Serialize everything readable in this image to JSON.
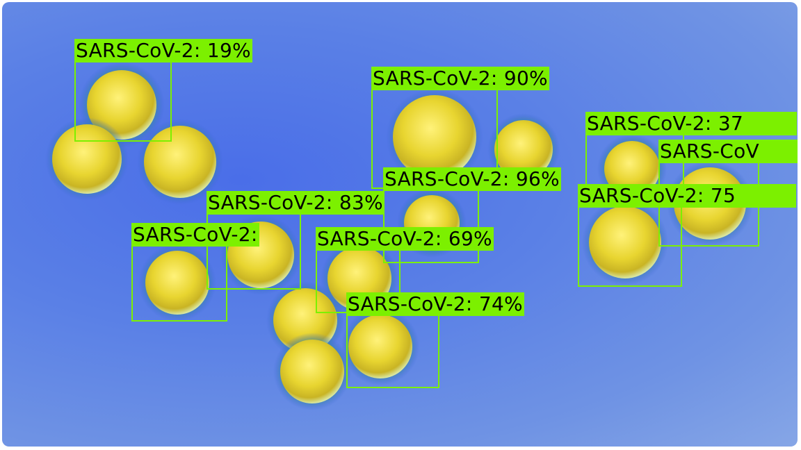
{
  "image": {
    "description_colors": {
      "background": "#5a80e6",
      "particle": "#e8d93a",
      "box": "#7cf000"
    }
  },
  "detections": [
    {
      "label": "SARS-CoV-2: 19%"
    },
    {
      "label": "SARS-CoV-2: 90%"
    },
    {
      "label": "SARS-CoV-2: 37"
    },
    {
      "label": "SARS-CoV"
    },
    {
      "label": "SARS-CoV-2: 96%"
    },
    {
      "label": "SARS-CoV-2: 75"
    },
    {
      "label": "SARS-CoV-2: 83%"
    },
    {
      "label": "SARS-CoV-2:"
    },
    {
      "label": "SARS-CoV-2: 69%"
    },
    {
      "label": "SARS-CoV-2: 74%"
    }
  ]
}
